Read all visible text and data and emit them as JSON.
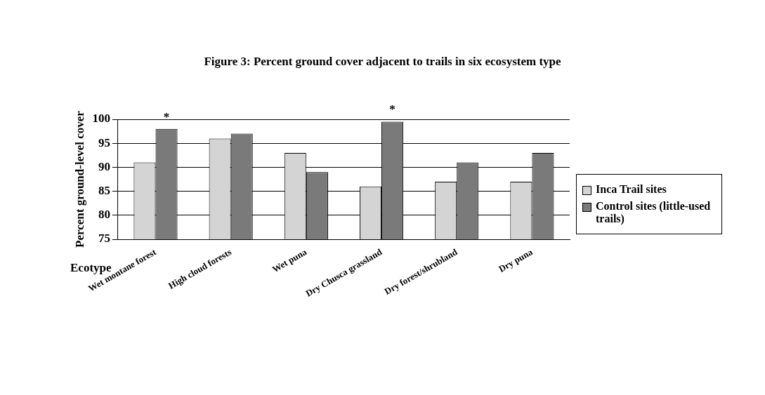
{
  "chart_data": {
    "type": "bar",
    "title": "Figure 3: Percent ground cover adjacent to trails in six ecosystem type",
    "xlabel": "Ecotype",
    "ylabel": "Percent ground-level cover",
    "categories": [
      "Wet montane forest",
      "High cloud forests",
      "Wet puna",
      "Dry Chusca grassland",
      "Dry forest/shrubland",
      "Dry puna"
    ],
    "series": [
      {
        "name": "Inca Trail sites",
        "color": "#d4d4d4",
        "values": [
          91,
          96,
          93,
          86,
          87,
          87
        ]
      },
      {
        "name": "Control sites (little-used trails)",
        "color": "#7a7a7a",
        "values": [
          98,
          97,
          89,
          99.5,
          91,
          93
        ]
      }
    ],
    "ylim": [
      75,
      100
    ],
    "yticks": [
      75,
      80,
      85,
      90,
      95,
      100
    ],
    "grid": "y",
    "legend": "right",
    "annotations": [
      {
        "text": "*",
        "x": "Wet montane forest",
        "y": 98
      },
      {
        "text": "*",
        "x": "Dry Chusca grassland",
        "y": 99.5
      }
    ]
  }
}
